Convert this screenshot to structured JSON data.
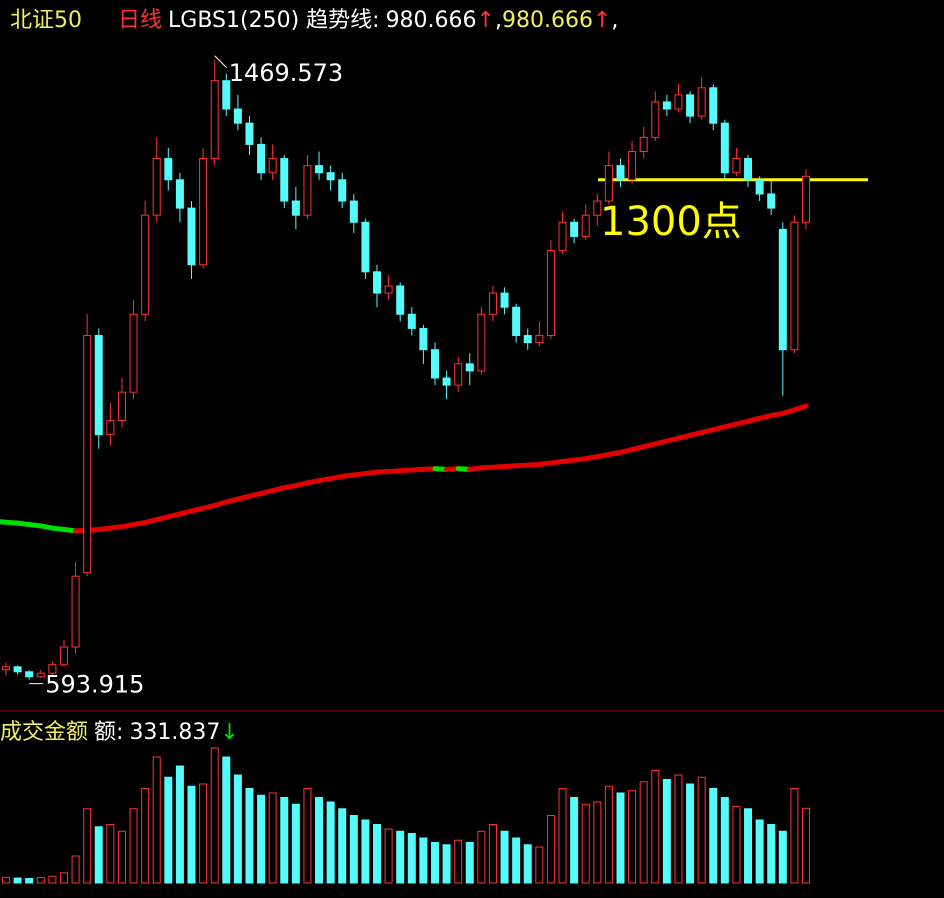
{
  "chart_data": {
    "type": "candlestick",
    "header": [
      {
        "text": "北证50",
        "color": "#f0f060"
      },
      {
        "text": "日线",
        "color": "#ff3232"
      },
      {
        "text": "LGBS1(250) 趋势线:",
        "color": "#ffffff"
      },
      {
        "text": 980.666,
        "color": "#ffffff"
      },
      {
        "text": "↑",
        "color": "#ff3232"
      },
      {
        "text": ",",
        "color": "#ffffff"
      },
      {
        "text": 980.666,
        "color": "#f0f060"
      },
      {
        "text": "↑",
        "color": "#ff3232"
      },
      {
        "text": ",",
        "color": "#ffffff"
      }
    ],
    "ylim": [
      551,
      1554
    ],
    "candles": {
      "up_color": "#ff3232",
      "down_color": "#54fcfc",
      "ohlc": [
        [
          608,
          618,
          600,
          612
        ],
        [
          612,
          614,
          601,
          605
        ],
        [
          605,
          607,
          593.915,
          598
        ],
        [
          598,
          608,
          596,
          603
        ],
        [
          603,
          620,
          600,
          615
        ],
        [
          615,
          650,
          612,
          640
        ],
        [
          640,
          760,
          630,
          740
        ],
        [
          745,
          1110,
          740,
          1080
        ],
        [
          1080,
          1090,
          920,
          940
        ],
        [
          940,
          985,
          925,
          960
        ],
        [
          960,
          1020,
          950,
          1000
        ],
        [
          1000,
          1130,
          990,
          1110
        ],
        [
          1110,
          1270,
          1100,
          1250
        ],
        [
          1250,
          1360,
          1240,
          1330
        ],
        [
          1330,
          1345,
          1285,
          1300
        ],
        [
          1300,
          1310,
          1240,
          1260
        ],
        [
          1260,
          1270,
          1160,
          1180
        ],
        [
          1180,
          1345,
          1175,
          1330
        ],
        [
          1330,
          1469.573,
          1320,
          1440
        ],
        [
          1440,
          1450,
          1390,
          1400
        ],
        [
          1400,
          1420,
          1370,
          1380
        ],
        [
          1380,
          1390,
          1335,
          1350
        ],
        [
          1350,
          1360,
          1300,
          1310
        ],
        [
          1310,
          1350,
          1300,
          1330
        ],
        [
          1330,
          1335,
          1260,
          1270
        ],
        [
          1270,
          1290,
          1230,
          1250
        ],
        [
          1250,
          1335,
          1245,
          1320
        ],
        [
          1320,
          1340,
          1300,
          1310
        ],
        [
          1310,
          1320,
          1285,
          1300
        ],
        [
          1300,
          1310,
          1260,
          1270
        ],
        [
          1270,
          1280,
          1225,
          1240
        ],
        [
          1240,
          1245,
          1160,
          1170
        ],
        [
          1170,
          1180,
          1120,
          1140
        ],
        [
          1140,
          1165,
          1130,
          1150
        ],
        [
          1150,
          1155,
          1100,
          1110
        ],
        [
          1110,
          1120,
          1080,
          1090
        ],
        [
          1090,
          1095,
          1040,
          1060
        ],
        [
          1060,
          1070,
          1010,
          1020
        ],
        [
          1020,
          1030,
          990,
          1010
        ],
        [
          1010,
          1050,
          1000,
          1040
        ],
        [
          1040,
          1055,
          1010,
          1030
        ],
        [
          1030,
          1120,
          1025,
          1110
        ],
        [
          1110,
          1150,
          1100,
          1140
        ],
        [
          1140,
          1148,
          1110,
          1120
        ],
        [
          1120,
          1125,
          1070,
          1080
        ],
        [
          1080,
          1090,
          1060,
          1070
        ],
        [
          1070,
          1100,
          1065,
          1080
        ],
        [
          1080,
          1215,
          1075,
          1200
        ],
        [
          1200,
          1255,
          1195,
          1240
        ],
        [
          1240,
          1245,
          1210,
          1220
        ],
        [
          1220,
          1265,
          1215,
          1250
        ],
        [
          1250,
          1280,
          1235,
          1270
        ],
        [
          1270,
          1340,
          1265,
          1320
        ],
        [
          1320,
          1330,
          1290,
          1300
        ],
        [
          1300,
          1355,
          1295,
          1340
        ],
        [
          1340,
          1375,
          1330,
          1360
        ],
        [
          1360,
          1425,
          1355,
          1410
        ],
        [
          1410,
          1420,
          1390,
          1400
        ],
        [
          1400,
          1435,
          1395,
          1420
        ],
        [
          1420,
          1425,
          1380,
          1390
        ],
        [
          1390,
          1445,
          1385,
          1430
        ],
        [
          1430,
          1435,
          1370,
          1380
        ],
        [
          1380,
          1385,
          1300,
          1310
        ],
        [
          1310,
          1345,
          1305,
          1330
        ],
        [
          1330,
          1335,
          1290,
          1300
        ],
        [
          1300,
          1305,
          1270,
          1280
        ],
        [
          1280,
          1300,
          1250,
          1260
        ],
        [
          1230,
          1240,
          995,
          1060
        ],
        [
          1060,
          1250,
          1055,
          1240
        ],
        [
          1240,
          1315,
          1230,
          1305
        ]
      ]
    },
    "ma": {
      "up_color": "#e00000",
      "down_color": "#00e000",
      "values": [
        817,
        815,
        813,
        811,
        808,
        806,
        804,
        805,
        806,
        808,
        810,
        813,
        816,
        820,
        824,
        828,
        832,
        836,
        840,
        845,
        849,
        853,
        857,
        861,
        865,
        868,
        872,
        875,
        878,
        881,
        883,
        885,
        887,
        888,
        889,
        890,
        891,
        892,
        891,
        892,
        891,
        893,
        894,
        895,
        896,
        897,
        898,
        900,
        902,
        904,
        906,
        909,
        912,
        915,
        919,
        923,
        927,
        931,
        935,
        939,
        943,
        947,
        951,
        955,
        959,
        963,
        967,
        970,
        975,
        980.666
      ]
    },
    "hline": {
      "value": 1300,
      "label": "1300点",
      "color": "#ffff00"
    },
    "volume": {
      "header": [
        {
          "text": "成交金额",
          "color": "#f0f060"
        },
        {
          "text": "额:",
          "color": "#ffffff"
        },
        {
          "text": 331.837,
          "color": "#ffffff"
        },
        {
          "text": "↓",
          "color": "#00e000"
        }
      ],
      "ylim": [
        0,
        760
      ],
      "values": [
        25,
        22,
        20,
        24,
        30,
        45,
        120,
        330,
        250,
        260,
        230,
        330,
        420,
        560,
        470,
        520,
        430,
        440,
        600,
        560,
        480,
        420,
        390,
        400,
        380,
        350,
        420,
        380,
        360,
        330,
        300,
        280,
        260,
        240,
        230,
        220,
        200,
        180,
        170,
        190,
        180,
        230,
        260,
        230,
        200,
        170,
        160,
        300,
        420,
        380,
        350,
        360,
        430,
        400,
        410,
        450,
        500,
        460,
        480,
        440,
        470,
        420,
        380,
        340,
        330,
        280,
        260,
        230,
        420,
        331.837
      ]
    }
  }
}
